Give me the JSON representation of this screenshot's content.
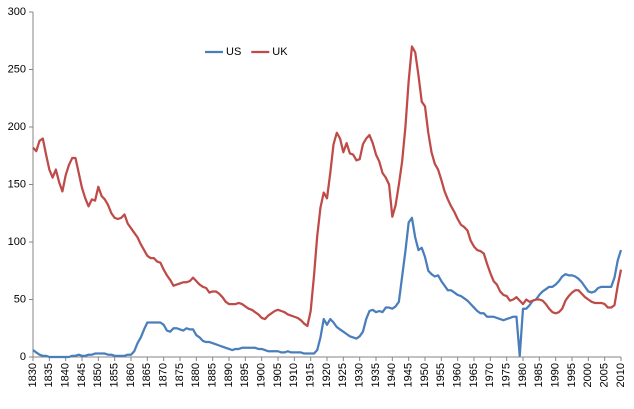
{
  "chart_data": {
    "type": "line",
    "x": [
      1830,
      1831,
      1832,
      1833,
      1834,
      1835,
      1836,
      1837,
      1838,
      1839,
      1840,
      1841,
      1842,
      1843,
      1844,
      1845,
      1846,
      1847,
      1848,
      1849,
      1850,
      1851,
      1852,
      1853,
      1854,
      1855,
      1856,
      1857,
      1858,
      1859,
      1860,
      1861,
      1862,
      1863,
      1864,
      1865,
      1866,
      1867,
      1868,
      1869,
      1870,
      1871,
      1872,
      1873,
      1874,
      1875,
      1876,
      1877,
      1878,
      1879,
      1880,
      1881,
      1882,
      1883,
      1884,
      1885,
      1886,
      1887,
      1888,
      1889,
      1890,
      1891,
      1892,
      1893,
      1894,
      1895,
      1896,
      1897,
      1898,
      1899,
      1900,
      1901,
      1902,
      1903,
      1904,
      1905,
      1906,
      1907,
      1908,
      1909,
      1910,
      1911,
      1912,
      1913,
      1914,
      1915,
      1916,
      1917,
      1918,
      1919,
      1920,
      1921,
      1922,
      1923,
      1924,
      1925,
      1926,
      1927,
      1928,
      1929,
      1930,
      1931,
      1932,
      1933,
      1934,
      1935,
      1936,
      1937,
      1938,
      1939,
      1940,
      1941,
      1942,
      1943,
      1944,
      1945,
      1946,
      1947,
      1948,
      1949,
      1950,
      1951,
      1952,
      1953,
      1954,
      1955,
      1956,
      1957,
      1958,
      1959,
      1960,
      1961,
      1962,
      1963,
      1964,
      1965,
      1966,
      1967,
      1968,
      1969,
      1970,
      1971,
      1972,
      1973,
      1974,
      1975,
      1976,
      1977,
      1978,
      1979,
      1980,
      1981,
      1982,
      1983,
      1984,
      1985,
      1986,
      1987,
      1988,
      1989,
      1990,
      1991,
      1992,
      1993,
      1994,
      1995,
      1996,
      1997,
      1998,
      1999,
      2000,
      2001,
      2002,
      2003,
      2004,
      2005,
      2006,
      2007,
      2008,
      2009,
      2010
    ],
    "series": [
      {
        "name": "US",
        "color": "#4a7ebb",
        "values": [
          6,
          4,
          2,
          1,
          1,
          0,
          0,
          0,
          0,
          0,
          0,
          0,
          1,
          1,
          2,
          1,
          1,
          2,
          2,
          3,
          3,
          3,
          3,
          2,
          2,
          1,
          1,
          1,
          1,
          2,
          2,
          5,
          12,
          17,
          24,
          30,
          30,
          30,
          30,
          30,
          28,
          23,
          22,
          25,
          25,
          24,
          23,
          25,
          24,
          24,
          19,
          17,
          14,
          13,
          13,
          12,
          11,
          10,
          9,
          8,
          7,
          6,
          7,
          7,
          8,
          8,
          8,
          8,
          8,
          7,
          7,
          6,
          5,
          5,
          5,
          5,
          4,
          4,
          5,
          4,
          4,
          4,
          4,
          3,
          3,
          3,
          3,
          6,
          17,
          33,
          28,
          33,
          30,
          26,
          24,
          22,
          20,
          18,
          17,
          16,
          18,
          22,
          33,
          40,
          41,
          39,
          40,
          39,
          43,
          43,
          42,
          44,
          48,
          70,
          92,
          117,
          121,
          104,
          93,
          95,
          87,
          75,
          72,
          70,
          71,
          66,
          62,
          58,
          58,
          56,
          54,
          53,
          51,
          49,
          46,
          43,
          40,
          38,
          38,
          35,
          35,
          35,
          34,
          33,
          32,
          33,
          34,
          35,
          35,
          1,
          42,
          42,
          45,
          49,
          50,
          54,
          57,
          59,
          61,
          61,
          63,
          66,
          70,
          72,
          71,
          71,
          70,
          68,
          65,
          61,
          57,
          56,
          57,
          60,
          61,
          61,
          61,
          61,
          69,
          84,
          93
        ]
      },
      {
        "name": "UK",
        "color": "#be4b48",
        "values": [
          182,
          179,
          188,
          190,
          176,
          163,
          156,
          163,
          152,
          144,
          158,
          167,
          173,
          173,
          160,
          147,
          138,
          131,
          137,
          136,
          148,
          140,
          137,
          132,
          125,
          121,
          120,
          121,
          124,
          116,
          112,
          108,
          104,
          98,
          93,
          88,
          86,
          86,
          83,
          82,
          76,
          71,
          67,
          62,
          63,
          64,
          65,
          65,
          66,
          69,
          66,
          63,
          61,
          60,
          56,
          57,
          57,
          55,
          52,
          48,
          46,
          46,
          46,
          47,
          46,
          44,
          42,
          41,
          39,
          37,
          34,
          33,
          36,
          38,
          40,
          41,
          40,
          39,
          37,
          36,
          35,
          34,
          32,
          29,
          27,
          40,
          70,
          105,
          130,
          143,
          138,
          160,
          185,
          195,
          190,
          178,
          186,
          177,
          176,
          171,
          172,
          185,
          190,
          193,
          186,
          176,
          170,
          160,
          156,
          150,
          122,
          132,
          150,
          170,
          200,
          240,
          270,
          265,
          245,
          222,
          218,
          195,
          178,
          168,
          163,
          154,
          144,
          137,
          131,
          126,
          120,
          115,
          113,
          110,
          101,
          96,
          93,
          92,
          90,
          81,
          73,
          66,
          63,
          57,
          54,
          53,
          49,
          50,
          52,
          49,
          46,
          50,
          48,
          49,
          50,
          50,
          49,
          46,
          42,
          39,
          38,
          39,
          42,
          49,
          53,
          56,
          58,
          58,
          55,
          52,
          50,
          48,
          47,
          47,
          47,
          46,
          43,
          43,
          45,
          62,
          76
        ]
      }
    ],
    "xlim": [
      1830,
      2010
    ],
    "xticks": [
      1830,
      1835,
      1840,
      1845,
      1850,
      1855,
      1860,
      1865,
      1870,
      1875,
      1880,
      1885,
      1890,
      1895,
      1900,
      1905,
      1910,
      1915,
      1920,
      1925,
      1930,
      1935,
      1940,
      1945,
      1950,
      1955,
      1960,
      1965,
      1970,
      1975,
      1980,
      1985,
      1990,
      1995,
      2000,
      2005,
      2010
    ],
    "ylim": [
      0,
      300
    ],
    "yticks": [
      0,
      50,
      100,
      150,
      200,
      250,
      300
    ]
  }
}
